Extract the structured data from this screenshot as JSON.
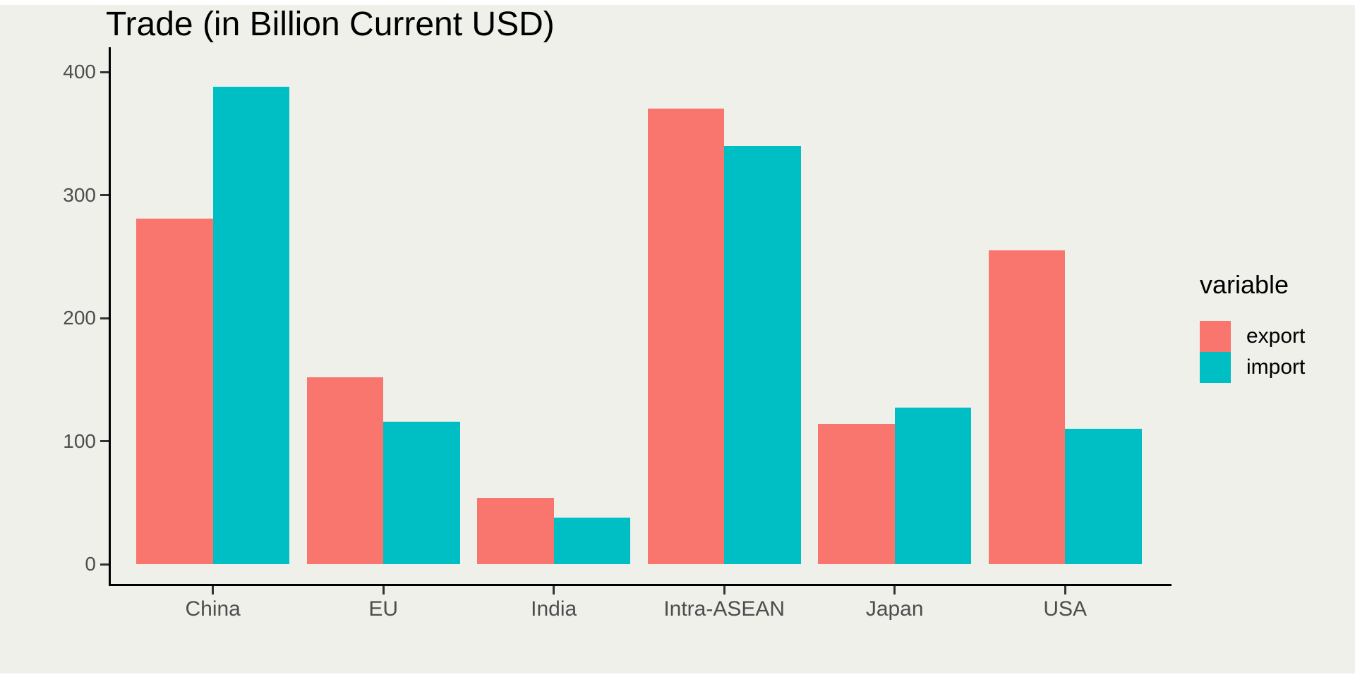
{
  "title": "Trade (in Billion Current USD)",
  "legend": {
    "title": "variable",
    "items": [
      {
        "label": "export",
        "color": "#F8766D"
      },
      {
        "label": "import",
        "color": "#00BFC4"
      }
    ]
  },
  "colors": {
    "background": "#F0F0EB",
    "axis_line": "#000000",
    "tick_mark": "#333333",
    "tick_label": "#4D4D4D",
    "export": "#F8766D",
    "import": "#00BFC4"
  },
  "chart_data": {
    "type": "bar",
    "title": "Trade (in Billion Current USD)",
    "xlabel": "",
    "ylabel": "",
    "categories": [
      "China",
      "EU",
      "India",
      "Intra-ASEAN",
      "Japan",
      "USA"
    ],
    "series": [
      {
        "name": "export",
        "color": "#F8766D",
        "values": [
          281,
          152,
          54,
          370,
          114,
          255
        ]
      },
      {
        "name": "import",
        "color": "#00BFC4",
        "values": [
          388,
          116,
          38,
          340,
          127,
          110
        ]
      }
    ],
    "yticks": [
      0,
      100,
      200,
      300,
      400
    ],
    "ylim": [
      0,
      400
    ],
    "grid": false,
    "legend_position": "right",
    "legend_title": "variable"
  }
}
